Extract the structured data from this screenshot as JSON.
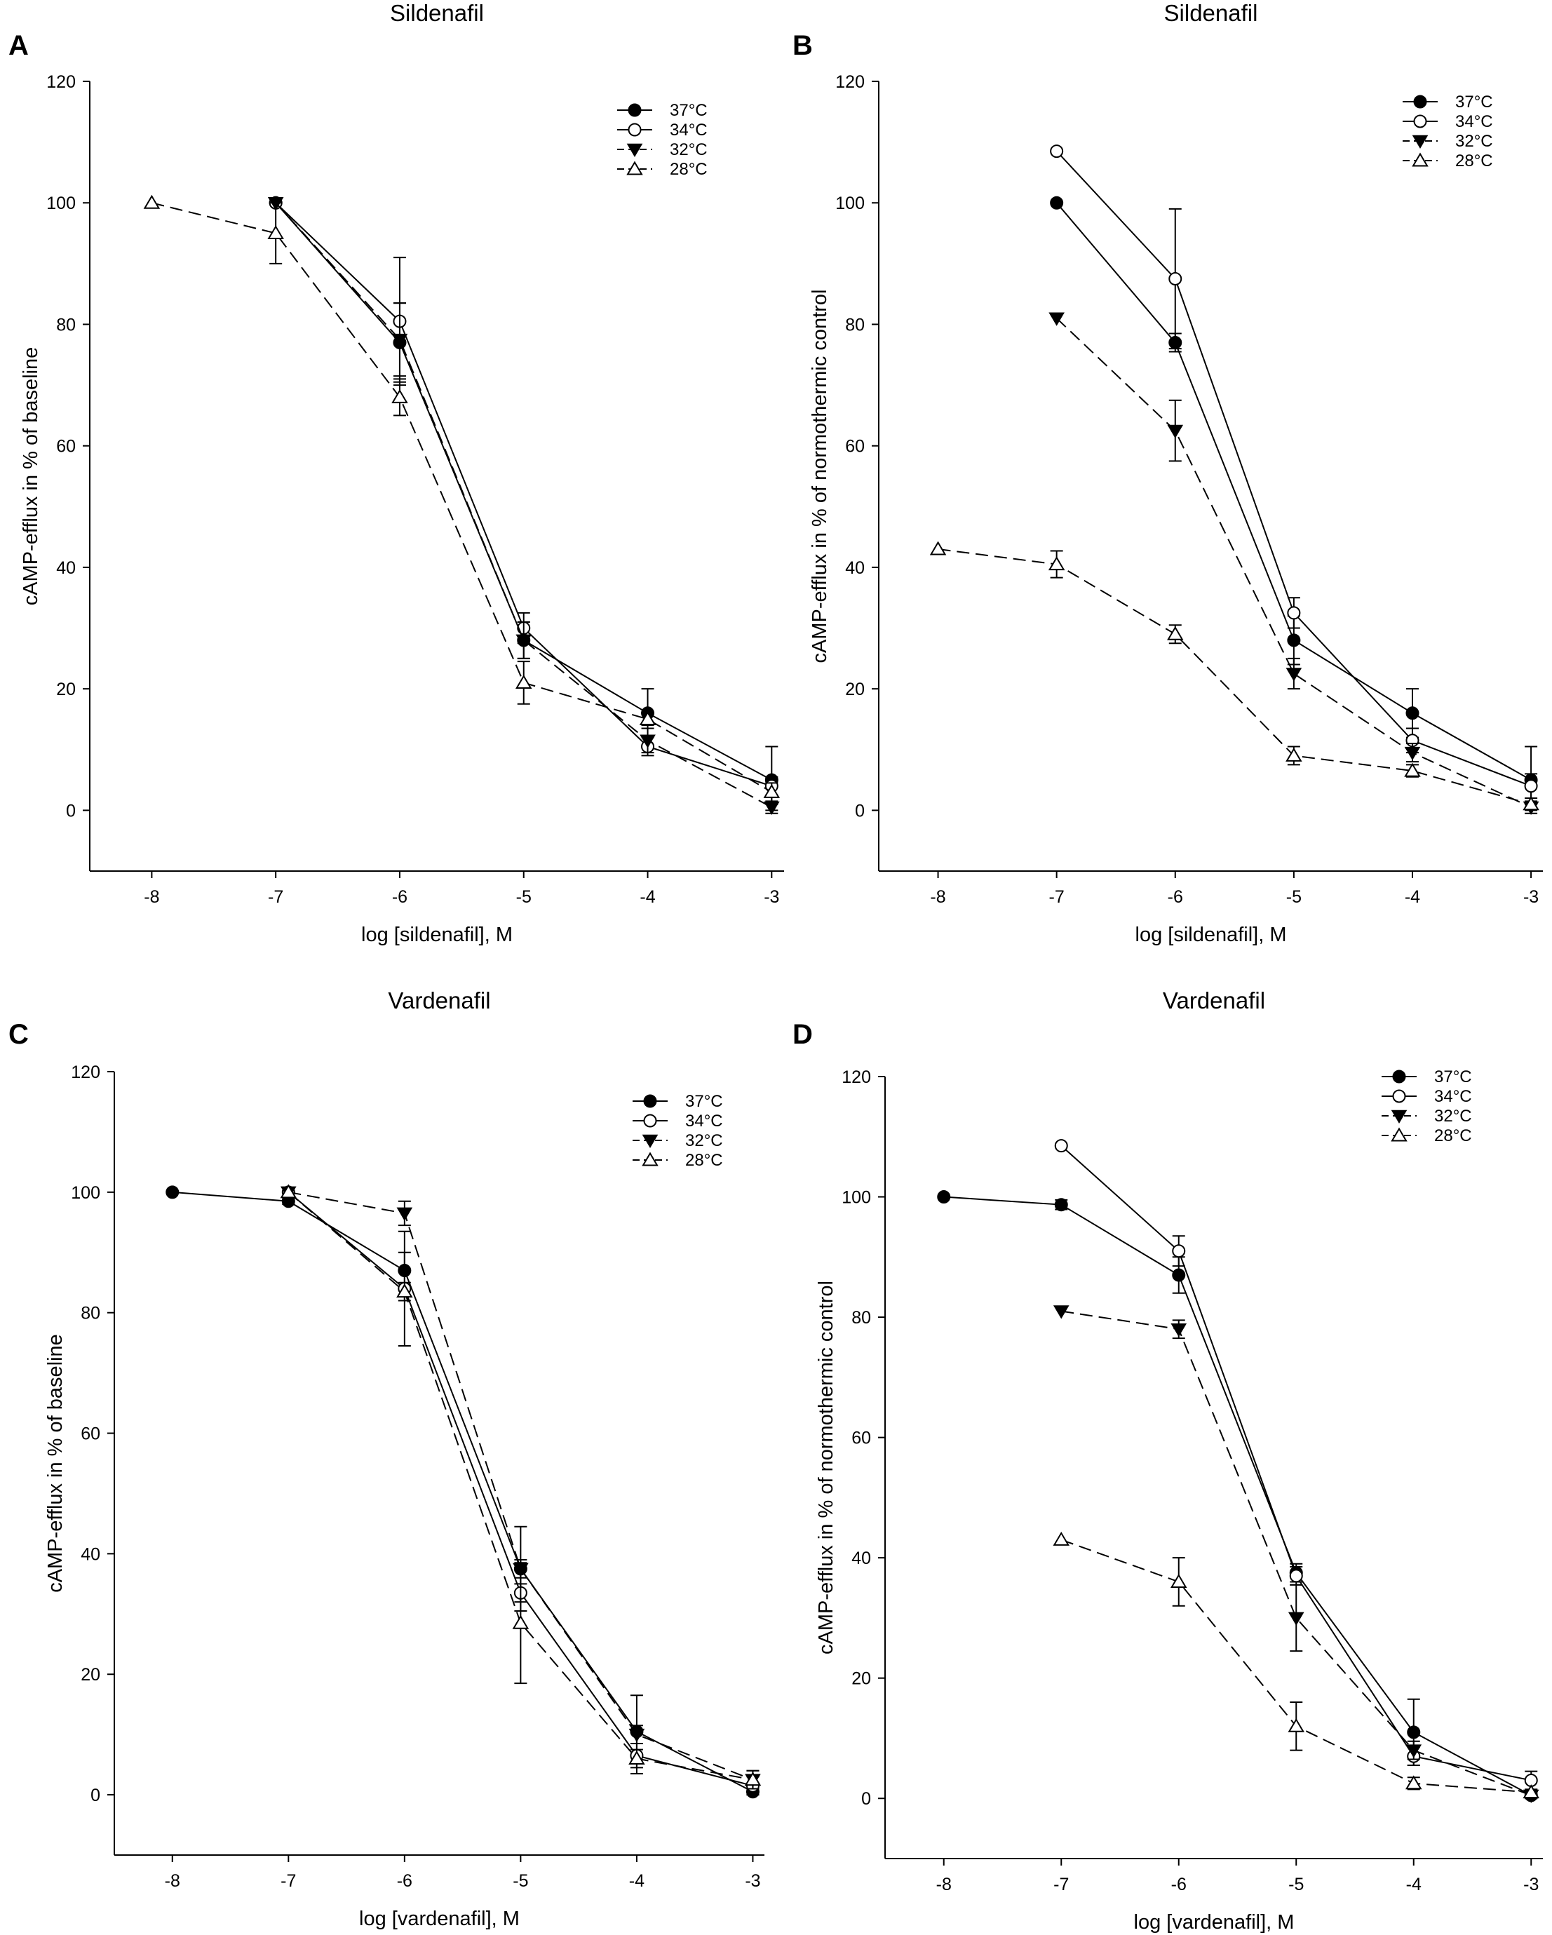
{
  "colors": {
    "ink": "#000000",
    "paper": "#ffffff"
  },
  "series_styles": [
    {
      "name": "37°C",
      "marker": "filled-circle",
      "dashed": false
    },
    {
      "name": "34°C",
      "marker": "open-circle",
      "dashed": false
    },
    {
      "name": "32°C",
      "marker": "filled-triangle-down",
      "dashed": true
    },
    {
      "name": "28°C",
      "marker": "open-triangle-up",
      "dashed": true
    }
  ],
  "chart_data": [
    {
      "id": "A",
      "type": "line",
      "panel_letter": "A",
      "title": "Sildenafil",
      "xlabel": "log [sildenafil], M",
      "ylabel": "cAMP-efflux in % of baseline",
      "xlim": [
        -8.5,
        -2.9
      ],
      "ylim": [
        -10,
        120
      ],
      "xticks": [
        -8,
        -7,
        -6,
        -5,
        -4,
        -3
      ],
      "yticks": [
        0,
        20,
        40,
        60,
        80,
        100,
        120
      ],
      "tick_labels_x": [
        "-8",
        "-7",
        "-6",
        "-5",
        "-4",
        "-3"
      ],
      "tick_labels_y": [
        "0",
        "20",
        "40",
        "60",
        "80",
        "100",
        "120"
      ],
      "legend_position": "top-right",
      "series": [
        {
          "name": "37°C",
          "points": [
            [
              -7,
              100,
              0
            ],
            [
              -6,
              77,
              6.5
            ],
            [
              -5,
              28,
              3
            ],
            [
              -4,
              16,
              4
            ],
            [
              -3,
              5,
              5.5
            ]
          ]
        },
        {
          "name": "34°C",
          "points": [
            [
              -7,
              100,
              0
            ],
            [
              -6,
              80.5,
              10.5
            ],
            [
              -5,
              30,
              2.5
            ],
            [
              -4,
              10.5,
              1.5
            ],
            [
              -3,
              4,
              1.5
            ]
          ]
        },
        {
          "name": "32°C",
          "points": [
            [
              -7,
              100,
              0
            ],
            [
              -6,
              77.5,
              6
            ],
            [
              -5,
              28,
              3
            ],
            [
              -4,
              11.5,
              2
            ],
            [
              -3,
              0.5,
              0.5
            ]
          ]
        },
        {
          "name": "28°C",
          "points": [
            [
              -8,
              100,
              0
            ],
            [
              -7,
              95,
              5
            ],
            [
              -6,
              68,
              3
            ],
            [
              -5,
              21,
              3.5
            ],
            [
              -4,
              15,
              1
            ],
            [
              -3,
              3,
              1.5
            ]
          ]
        }
      ]
    },
    {
      "id": "B",
      "type": "line",
      "panel_letter": "B",
      "title": "Sildenafil",
      "xlabel": "log [sildenafil], M",
      "ylabel": "cAMP-efflux in % of normothermic control",
      "xlim": [
        -8.5,
        -2.9
      ],
      "ylim": [
        -10,
        120
      ],
      "xticks": [
        -8,
        -7,
        -6,
        -5,
        -4,
        -3
      ],
      "yticks": [
        0,
        20,
        40,
        60,
        80,
        100,
        120
      ],
      "tick_labels_x": [
        "-8",
        "-7",
        "-6",
        "-5",
        "-4",
        "-3"
      ],
      "tick_labels_y": [
        "0",
        "20",
        "40",
        "60",
        "80",
        "100",
        "120"
      ],
      "legend_position": "top-right",
      "series": [
        {
          "name": "37°C",
          "points": [
            [
              -7,
              100,
              0
            ],
            [
              -6,
              77,
              1.5
            ],
            [
              -5,
              28,
              4
            ],
            [
              -4,
              16,
              4
            ],
            [
              -3,
              5,
              5.5
            ]
          ]
        },
        {
          "name": "34°C",
          "points": [
            [
              -7,
              108.5,
              0
            ],
            [
              -6,
              87.5,
              11.5
            ],
            [
              -5,
              32.5,
              2.5
            ],
            [
              -4,
              11.5,
              2
            ],
            [
              -3,
              4,
              2
            ]
          ]
        },
        {
          "name": "32°C",
          "points": [
            [
              -7,
              81,
              0
            ],
            [
              -6,
              62.5,
              5
            ],
            [
              -5,
              22.5,
              2.5
            ],
            [
              -4,
              9.5,
              1.5
            ],
            [
              -3,
              0.5,
              0.5
            ]
          ]
        },
        {
          "name": "28°C",
          "points": [
            [
              -8,
              43,
              0
            ],
            [
              -7,
              40.5,
              2.2
            ],
            [
              -6,
              29,
              1.5
            ],
            [
              -5,
              9,
              1.5
            ],
            [
              -4,
              6.5,
              1
            ],
            [
              -3,
              1,
              0.5
            ]
          ]
        }
      ]
    },
    {
      "id": "C",
      "type": "line",
      "panel_letter": "C",
      "title": "Vardenafil",
      "xlabel": "log [vardenafil], M",
      "ylabel": "cAMP-efflux in % of baseline",
      "xlim": [
        -8.5,
        -2.9
      ],
      "ylim": [
        -10,
        120
      ],
      "xticks": [
        -8,
        -7,
        -6,
        -5,
        -4,
        -3
      ],
      "yticks": [
        0,
        20,
        40,
        60,
        80,
        100,
        120
      ],
      "tick_labels_x": [
        "-8",
        "-7",
        "-6",
        "-5",
        "-4",
        "-3"
      ],
      "tick_labels_y": [
        "0",
        "20",
        "40",
        "60",
        "80",
        "100",
        "120"
      ],
      "legend_position": "top-right",
      "series": [
        {
          "name": "37°C",
          "points": [
            [
              -8,
              100,
              0
            ],
            [
              -7,
              98.5,
              0.5
            ],
            [
              -6,
              87,
              3
            ],
            [
              -5,
              37.5,
              7
            ],
            [
              -4,
              10.5,
              6
            ],
            [
              -3,
              0.5,
              0.5
            ]
          ]
        },
        {
          "name": "34°C",
          "points": [
            [
              -7,
              100,
              0
            ],
            [
              -6,
              84,
              9.5
            ],
            [
              -5,
              33.5,
              1.5
            ],
            [
              -4,
              6.5,
              1
            ],
            [
              -3,
              1.5,
              1.5
            ]
          ]
        },
        {
          "name": "32°C",
          "points": [
            [
              -7,
              100,
              0
            ],
            [
              -6,
              96.5,
              2
            ],
            [
              -5,
              37.5,
              1.5
            ],
            [
              -4,
              10,
              1.5
            ],
            [
              -3,
              2.5,
              1.5
            ]
          ]
        },
        {
          "name": "28°C",
          "points": [
            [
              -7,
              100,
              0
            ],
            [
              -6,
              83.5,
              1.5
            ],
            [
              -5,
              28.5,
              10
            ],
            [
              -4,
              6,
              2.5
            ],
            [
              -3,
              2.5,
              1.5
            ]
          ]
        }
      ]
    },
    {
      "id": "D",
      "type": "line",
      "panel_letter": "D",
      "title": "Vardenafil",
      "xlabel": "log [vardenafil], M",
      "ylabel": "cAMP-efflux in % of normothermic control",
      "xlim": [
        -8.5,
        -2.9
      ],
      "ylim": [
        -10,
        120
      ],
      "xticks": [
        -8,
        -7,
        -6,
        -5,
        -4,
        -3
      ],
      "yticks": [
        0,
        20,
        40,
        60,
        80,
        100,
        120
      ],
      "tick_labels_x": [
        "-8",
        "-7",
        "-6",
        "-5",
        "-4",
        "-3"
      ],
      "tick_labels_y": [
        "0",
        "20",
        "40",
        "60",
        "80",
        "100",
        "120"
      ],
      "legend_position": "top-right",
      "series": [
        {
          "name": "37°C",
          "points": [
            [
              -8,
              100,
              0
            ],
            [
              -7,
              98.7,
              0.8
            ],
            [
              -6,
              87,
              3
            ],
            [
              -5,
              37.5,
              1.5
            ],
            [
              -4,
              11,
              5.5
            ],
            [
              -3,
              0.5,
              0.5
            ]
          ]
        },
        {
          "name": "34°C",
          "points": [
            [
              -7,
              108.5,
              0
            ],
            [
              -6,
              91,
              2.5
            ],
            [
              -5,
              37,
              1.5
            ],
            [
              -4,
              7,
              1.5
            ],
            [
              -3,
              3,
              1.5
            ]
          ]
        },
        {
          "name": "32°C",
          "points": [
            [
              -7,
              81,
              0
            ],
            [
              -6,
              78,
              1.5
            ],
            [
              -5,
              30,
              5.5
            ],
            [
              -4,
              8,
              1.5
            ],
            [
              -3,
              0.5,
              0.5
            ]
          ]
        },
        {
          "name": "28°C",
          "points": [
            [
              -7,
              43,
              0
            ],
            [
              -6,
              36,
              4
            ],
            [
              -5,
              12,
              4
            ],
            [
              -4,
              2.5,
              1
            ],
            [
              -3,
              1,
              0.5
            ]
          ]
        }
      ]
    }
  ]
}
